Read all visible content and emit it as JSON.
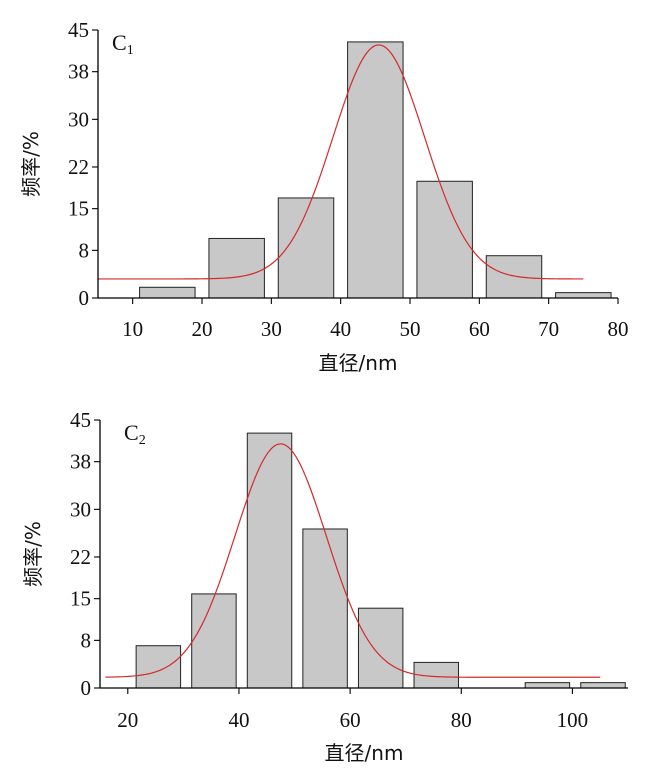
{
  "chart_data": [
    {
      "type": "bar",
      "panel_label": "C",
      "panel_sub": "1",
      "xlabel": "直径/nm",
      "ylabel": "频率/%",
      "xlim": [
        5,
        80
      ],
      "ylim": [
        0,
        45
      ],
      "xticks": [
        10,
        20,
        30,
        40,
        50,
        60,
        70,
        80
      ],
      "yticks": [
        0,
        8,
        15,
        22,
        30,
        38,
        45
      ],
      "bars": [
        {
          "x0": 11,
          "x1": 19,
          "value": 1.8
        },
        {
          "x0": 21,
          "x1": 29,
          "value": 10
        },
        {
          "x0": 31,
          "x1": 39,
          "value": 16.8
        },
        {
          "x0": 41,
          "x1": 49,
          "value": 43
        },
        {
          "x0": 51,
          "x1": 59,
          "value": 19.6
        },
        {
          "x0": 61,
          "x1": 69,
          "value": 7.1
        },
        {
          "x0": 71,
          "x1": 79,
          "value": 0.9
        }
      ],
      "fit_curve": {
        "type": "gaussian",
        "baseline": 3.2,
        "peak": 42.5,
        "center": 45.5,
        "sigma": 6.6,
        "x_range": [
          5,
          75
        ],
        "color": "#d42a2a"
      },
      "bar_color": "#c8c8c8"
    },
    {
      "type": "bar",
      "panel_label": "C",
      "panel_sub": "2",
      "xlabel": "直径/nm",
      "ylabel": "频率/%",
      "xlim": [
        15,
        110
      ],
      "ylim": [
        0,
        45
      ],
      "xticks": [
        20,
        40,
        60,
        80,
        100
      ],
      "yticks": [
        0,
        8,
        15,
        22,
        30,
        38,
        45
      ],
      "bars": [
        {
          "x0": 21.5,
          "x1": 29.5,
          "value": 7.1
        },
        {
          "x0": 31.5,
          "x1": 39.5,
          "value": 15.8
        },
        {
          "x0": 41.5,
          "x1": 49.5,
          "value": 42.8
        },
        {
          "x0": 51.5,
          "x1": 59.5,
          "value": 26.7
        },
        {
          "x0": 61.5,
          "x1": 69.5,
          "value": 13.4
        },
        {
          "x0": 71.5,
          "x1": 79.5,
          "value": 4.3
        },
        {
          "x0": 81.5,
          "x1": 89.5,
          "value": 0
        },
        {
          "x0": 91.5,
          "x1": 99.5,
          "value": 0.9
        },
        {
          "x0": 101.5,
          "x1": 109.5,
          "value": 0.9
        }
      ],
      "fit_curve": {
        "type": "gaussian",
        "baseline": 1.8,
        "peak": 41,
        "center": 47.5,
        "sigma": 8.2,
        "x_range": [
          16,
          105
        ],
        "color": "#d42a2a"
      },
      "bar_color": "#c8c8c8"
    }
  ]
}
